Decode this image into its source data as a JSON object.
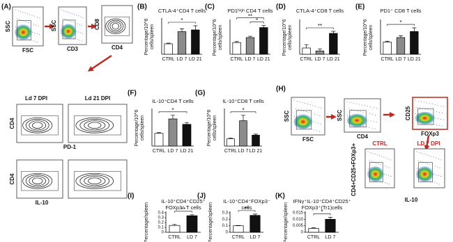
{
  "chart_data": [
    {
      "type": "bar",
      "panel": "(B)",
      "title": [
        "CTLA-4⁺CD4 T cells"
      ],
      "ylabel": [
        "Percentage/10^6",
        "cells/spleen"
      ],
      "categories": [
        "CTRL",
        "LD 7",
        "LD 21"
      ],
      "values": [
        0.3,
        0.65,
        0.7
      ],
      "errors": [
        0.02,
        0.08,
        0.12
      ],
      "colors": [
        "#ffffff",
        "#8c8c8c",
        "#111111"
      ],
      "ylim": [
        0,
        1
      ],
      "significance": [
        "*"
      ]
    },
    {
      "type": "bar",
      "panel": "(C)",
      "title": [
        "PD1ʰⁱᵍʰ CD4 T cells"
      ],
      "ylabel": [
        "Percentage/10^6",
        "cells/spleen"
      ],
      "categories": [
        "CTRL",
        "LD 7",
        "LD 21"
      ],
      "values": [
        0.35,
        0.5,
        0.8
      ],
      "errors": [
        0.03,
        0.04,
        0.06
      ],
      "colors": [
        "#ffffff",
        "#8c8c8c",
        "#111111"
      ],
      "ylim": [
        0,
        1
      ],
      "significance": [
        "**",
        "*"
      ]
    },
    {
      "type": "bar",
      "panel": "(D)",
      "title": [
        "CTLA-4⁺CD8 T cells"
      ],
      "ylabel": [
        "Percentage/10^6",
        "cells/spleen"
      ],
      "categories": [
        "CTRL",
        "LD 7",
        "LD 21"
      ],
      "values": [
        0.15,
        0.08,
        0.5
      ],
      "errors": [
        0.08,
        0.05,
        0.05
      ],
      "colors": [
        "#ffffff",
        "#8c8c8c",
        "#111111"
      ],
      "ylim": [
        0,
        0.8
      ],
      "significance": [
        "**"
      ]
    },
    {
      "type": "bar",
      "panel": "(E)",
      "title": [
        "PD1⁺ CD8 T cells"
      ],
      "ylabel": [
        "Percentage/10^6",
        "cells/spleen"
      ],
      "categories": [
        "CTRL",
        "LD 7",
        "LD 21"
      ],
      "values": [
        0.4,
        0.55,
        0.75
      ],
      "errors": [
        0.03,
        0.06,
        0.12
      ],
      "colors": [
        "#ffffff",
        "#8c8c8c",
        "#111111"
      ],
      "ylim": [
        0,
        1.1
      ],
      "significance": [
        "*"
      ]
    },
    {
      "type": "bar",
      "panel": "(F)",
      "title": [
        "IL-10⁺CD4 T cells"
      ],
      "ylabel": [
        "Percentage/10^6",
        "cells/spleen"
      ],
      "categories": [
        "CTRL",
        "LD 7",
        "LD 21"
      ],
      "values": [
        0.35,
        0.75,
        0.6
      ],
      "errors": [
        0.02,
        0.1,
        0.05
      ],
      "colors": [
        "#ffffff",
        "#8c8c8c",
        "#111111"
      ],
      "ylim": [
        0,
        1
      ],
      "significance": [
        "*"
      ]
    },
    {
      "type": "bar",
      "panel": "(G)",
      "title": [
        "IL-10⁺CD8 T cells"
      ],
      "ylabel": [
        "Percentage/10^6",
        "cells/spleen"
      ],
      "categories": [
        "CTRL",
        "LD 7",
        "LD 21"
      ],
      "values": [
        0.2,
        0.7,
        0.3
      ],
      "errors": [
        0.02,
        0.15,
        0.03
      ],
      "colors": [
        "#ffffff",
        "#8c8c8c",
        "#111111"
      ],
      "ylim": [
        0,
        1
      ],
      "significance": [
        "*"
      ]
    },
    {
      "type": "bar",
      "panel": "(I)",
      "title": [
        "IL-10⁺CD4⁺CD25⁺",
        "FOXp3⁺ T cells"
      ],
      "ylabel": [
        "Percentage/spleen"
      ],
      "categories": [
        "CTRL",
        "LD 7"
      ],
      "values": [
        0.14,
        0.34
      ],
      "errors": [
        0.02,
        0.02
      ],
      "colors": [
        "#ffffff",
        "#111111"
      ],
      "ylim": [
        0,
        0.4
      ],
      "yticks": [
        0,
        0.1,
        0.2,
        0.3,
        0.4
      ],
      "significance": [
        "**"
      ]
    },
    {
      "type": "bar",
      "panel": "(J)",
      "title": [
        "IL-10⁺CD4⁺FOXp3⁻",
        "cells"
      ],
      "ylabel": [
        "Percentage/spleen"
      ],
      "categories": [
        "CTRL",
        "LD 7"
      ],
      "values": [
        0.1,
        0.26
      ],
      "errors": [
        0.005,
        0.02
      ],
      "colors": [
        "#ffffff",
        "#111111"
      ],
      "ylim": [
        0,
        0.3
      ],
      "yticks": [
        0,
        0.1,
        0.2,
        0.3
      ],
      "significance": [
        "**"
      ]
    },
    {
      "type": "bar",
      "panel": "(K)",
      "title": [
        "IFNγ⁺IL-10⁺CD4⁺CD25⁺",
        "FOXp3⁺(Tr1)cells"
      ],
      "ylabel": [
        "Percentage/spleen"
      ],
      "categories": [
        "CTRL",
        "LD 7"
      ],
      "values": [
        0.003,
        0.01
      ],
      "errors": [
        0.0004,
        0.0015
      ],
      "colors": [
        "#ffffff",
        "#111111"
      ],
      "ylim": [
        0,
        0.015
      ],
      "yticks": [
        0,
        {
          "value": 0.005,
          "label": "0.005"
        },
        {
          "value": 0.01,
          "label": "0.010"
        },
        {
          "value": 0.015,
          "label": "0.015"
        }
      ],
      "significance": [
        "*"
      ]
    }
  ],
  "flow": {
    "A": {
      "panel": "(A)",
      "plots": [
        {
          "y": "SSC",
          "x": "FSC"
        },
        {
          "y": "SSC",
          "x": "CD3"
        },
        {
          "y": "CD8",
          "x": "CD4"
        }
      ],
      "row_titles": [
        "Ld 7 DPI",
        "Ld 21 DPI"
      ],
      "row_axes": [
        {
          "y": "CD4",
          "x": "PD-1"
        },
        {
          "y": "CD4",
          "x": "IL-10"
        }
      ]
    },
    "H": {
      "panel": "(H)",
      "plots": [
        {
          "y": "SSC",
          "x": "FSC"
        },
        {
          "y": "SSC",
          "x": "CD4"
        },
        {
          "y": "CD25",
          "x": "FOXp3"
        }
      ],
      "groups": [
        "CTRL",
        "LD 7 DPI"
      ],
      "ylabel": "CD4+CD25+FOXp3+",
      "xlabel": "IL-10"
    }
  }
}
